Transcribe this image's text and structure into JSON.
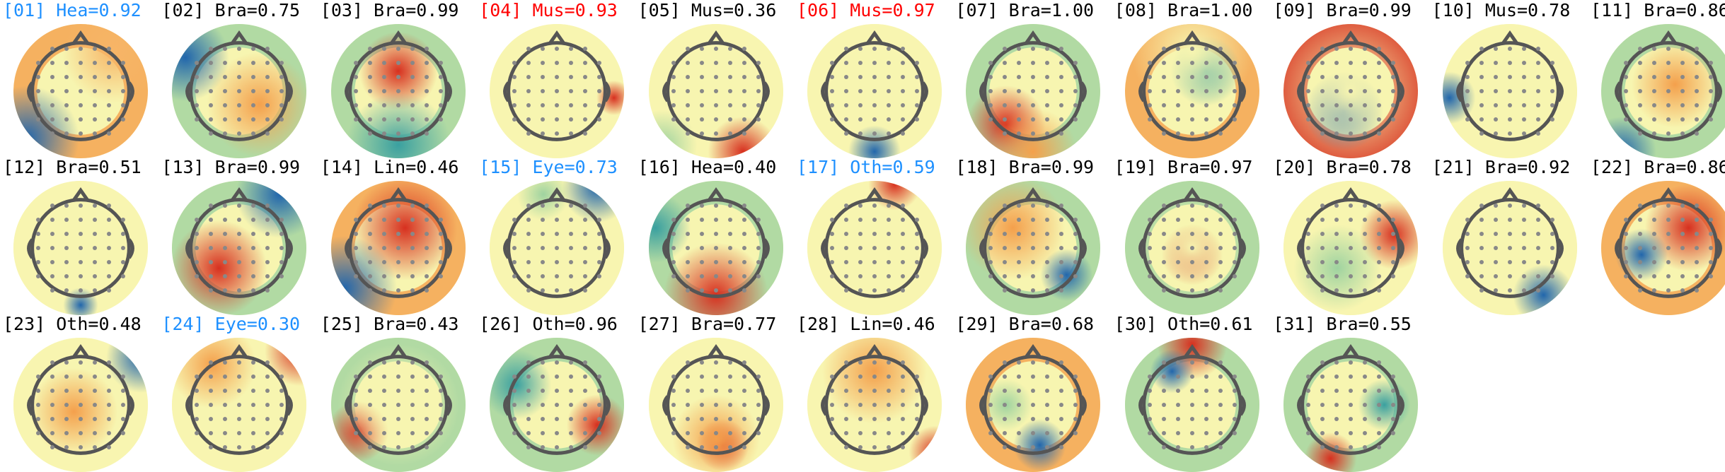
{
  "colors": {
    "normal": "#000000",
    "eye": "#1e90ff",
    "muscle": "#ff0000"
  },
  "components": [
    {
      "title": "[01] Hea=0.92",
      "status": "eye"
    },
    {
      "title": "[02] Bra=0.75",
      "status": "normal"
    },
    {
      "title": "[03] Bra=0.99",
      "status": "normal"
    },
    {
      "title": "[04] Mus=0.93",
      "status": "muscle"
    },
    {
      "title": "[05] Mus=0.36",
      "status": "normal"
    },
    {
      "title": "[06] Mus=0.97",
      "status": "muscle"
    },
    {
      "title": "[07] Bra=1.00",
      "status": "normal"
    },
    {
      "title": "[08] Bra=1.00",
      "status": "normal"
    },
    {
      "title": "[09] Bra=0.99",
      "status": "normal"
    },
    {
      "title": "[10] Mus=0.78",
      "status": "normal"
    },
    {
      "title": "[11] Bra=0.86",
      "status": "normal"
    },
    {
      "title": "[12] Bra=0.51",
      "status": "normal"
    },
    {
      "title": "[13] Bra=0.99",
      "status": "normal"
    },
    {
      "title": "[14] Lin=0.46",
      "status": "normal"
    },
    {
      "title": "[15] Eye=0.73",
      "status": "eye"
    },
    {
      "title": "[16] Hea=0.40",
      "status": "normal"
    },
    {
      "title": "[17] Oth=0.59",
      "status": "eye"
    },
    {
      "title": "[18] Bra=0.99",
      "status": "normal"
    },
    {
      "title": "[19] Bra=0.97",
      "status": "normal"
    },
    {
      "title": "[20] Bra=0.78",
      "status": "normal"
    },
    {
      "title": "[21] Bra=0.92",
      "status": "normal"
    },
    {
      "title": "[22] Bra=0.86",
      "status": "normal"
    },
    {
      "title": "[23] Oth=0.48",
      "status": "normal"
    },
    {
      "title": "[24] Eye=0.30",
      "status": "eye"
    },
    {
      "title": "[25] Bra=0.43",
      "status": "normal"
    },
    {
      "title": "[26] Oth=0.96",
      "status": "normal"
    },
    {
      "title": "[27] Bra=0.77",
      "status": "normal"
    },
    {
      "title": "[28] Lin=0.46",
      "status": "normal"
    },
    {
      "title": "[29] Bra=0.68",
      "status": "normal"
    },
    {
      "title": "[30] Oth=0.61",
      "status": "normal"
    },
    {
      "title": "[31] Bra=0.55",
      "status": "normal"
    }
  ]
}
